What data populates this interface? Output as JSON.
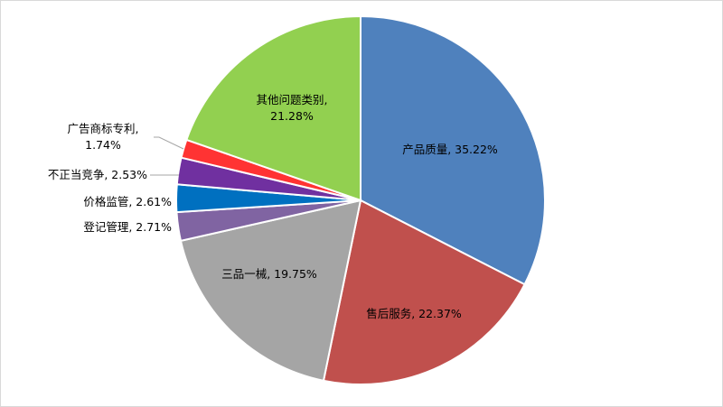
{
  "chart_data": {
    "type": "pie",
    "title": "",
    "slices": [
      {
        "label": "产品质量",
        "value": 35.22,
        "text": "35.22%",
        "color": "#4F81BD"
      },
      {
        "label": "售后服务",
        "value": 22.37,
        "text": "22.37%",
        "color": "#C0504D"
      },
      {
        "label": "三品一械",
        "value": 19.75,
        "text": "19.75%",
        "color": "#A5A5A5"
      },
      {
        "label": "登记管理",
        "value": 2.71,
        "text": "2.71%",
        "color": "#8064A2"
      },
      {
        "label": "价格监管",
        "value": 2.61,
        "text": "2.61%",
        "color": "#0070C0"
      },
      {
        "label": "不正当竞争",
        "value": 2.53,
        "text": "2.53%",
        "color": "#7030A0"
      },
      {
        "label": "广告商标专利",
        "value": 1.74,
        "text": "1.74%",
        "color": "#FF3333"
      },
      {
        "label": "其他问题类别",
        "value": 21.28,
        "text": "21.28%",
        "color": "#92D050"
      }
    ]
  }
}
